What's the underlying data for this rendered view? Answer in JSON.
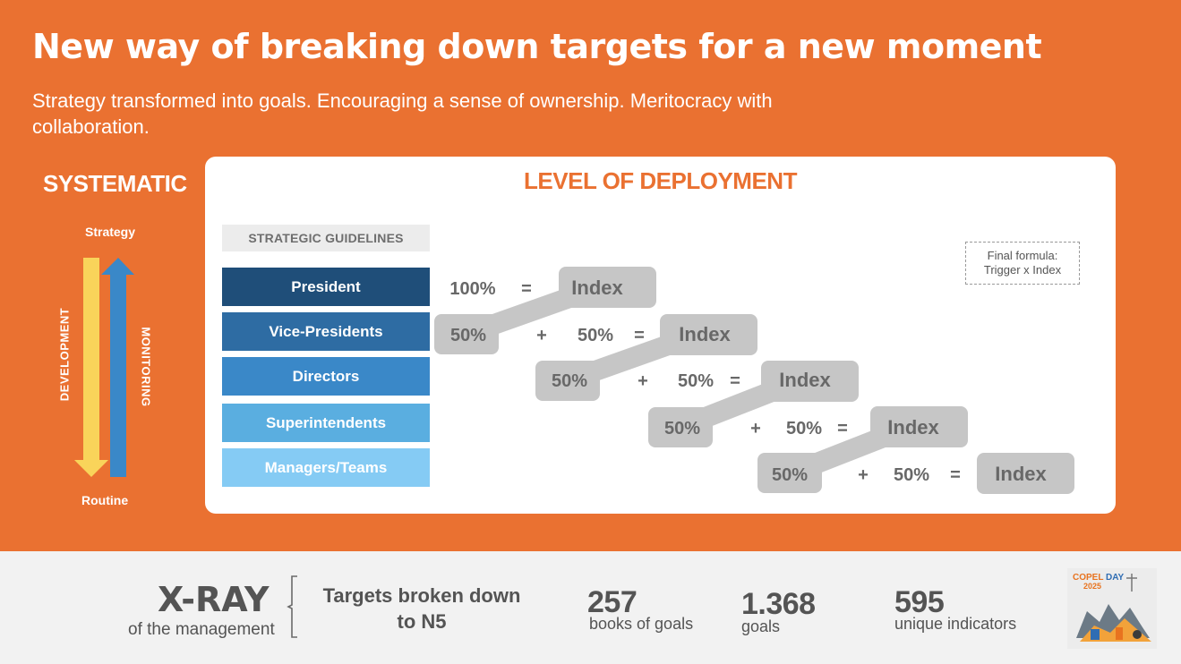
{
  "header": {
    "title": "New way of breaking down targets for a new moment",
    "subtitle": "Strategy transformed into goals.  Encouraging a sense of ownership.  Meritocracy with collaboration."
  },
  "sidebar": {
    "heading": "SYSTEMATIC",
    "top_label": "Strategy",
    "bottom_label": "Routine",
    "down_arrow_label": "DEVELOPMENT",
    "up_arrow_label": "MONITORING"
  },
  "deployment": {
    "heading": "LEVEL OF DEPLOYMENT",
    "guidelines_label": "STRATEGIC GUIDELINES",
    "formula_line1": "Final formula:",
    "formula_line2": "Trigger x Index",
    "levels": [
      "President",
      "Vice-Presidents",
      "Directors",
      "Superintendents",
      "Managers/Teams"
    ],
    "rows": [
      {
        "parent_share": "",
        "own_share": "100%",
        "plus": "",
        "equals": "=",
        "result": "Index"
      },
      {
        "parent_share": "50%",
        "own_share": "50%",
        "plus": "+",
        "equals": "=",
        "result": "Index"
      },
      {
        "parent_share": "50%",
        "own_share": "50%",
        "plus": "+",
        "equals": "=",
        "result": "Index"
      },
      {
        "parent_share": "50%",
        "own_share": "50%",
        "plus": "+",
        "equals": "=",
        "result": "Index"
      },
      {
        "parent_share": "50%",
        "own_share": "50%",
        "plus": "+",
        "equals": "=",
        "result": "Index"
      }
    ]
  },
  "footer": {
    "xray_title": "X-RAY",
    "xray_subtitle": "of the management",
    "targets_line1": "Targets broken down",
    "targets_line2": "to N5",
    "stats": [
      {
        "value": "257",
        "label": "books of goals"
      },
      {
        "value": "1.368",
        "label": "goals"
      },
      {
        "value": "595",
        "label": "unique indicators"
      }
    ],
    "logo_text_1": "COPEL",
    "logo_text_2": "DAY",
    "logo_year": "2025"
  },
  "colors": {
    "brand_orange": "#ea7131",
    "down_arrow": "#f9d45a",
    "up_arrow": "#3a88c8",
    "pill_gray": "#c6c6c6",
    "pill_text": "#686868"
  }
}
